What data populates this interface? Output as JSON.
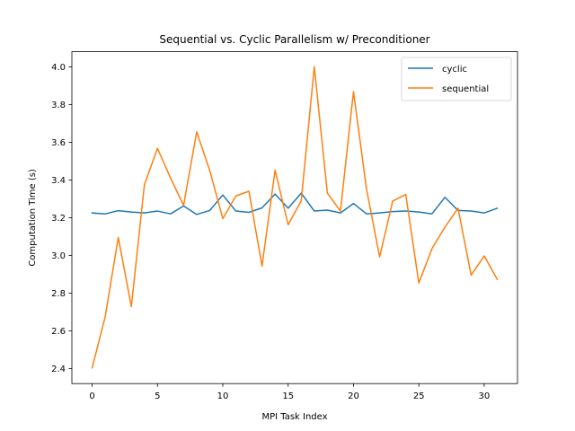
{
  "chart_data": {
    "type": "line",
    "title": "Sequential vs. Cyclic Parallelism w/ Preconditioner",
    "xlabel": "MPI Task Index",
    "ylabel": "Computation Time (s)",
    "xlim": [
      -1.55,
      32.55
    ],
    "ylim": [
      2.32,
      4.08
    ],
    "xticks": [
      0,
      5,
      10,
      15,
      20,
      25,
      30
    ],
    "yticks": [
      2.4,
      2.6,
      2.8,
      3.0,
      3.2,
      3.4,
      3.6,
      3.8,
      4.0
    ],
    "xtick_labels": [
      "0",
      "5",
      "10",
      "15",
      "20",
      "25",
      "30"
    ],
    "ytick_labels": [
      "2.4",
      "2.6",
      "2.8",
      "3.0",
      "3.2",
      "3.4",
      "3.6",
      "3.8",
      "4.0"
    ],
    "grid": false,
    "legend_position": "top-right",
    "x": [
      0,
      1,
      2,
      3,
      4,
      5,
      6,
      7,
      8,
      9,
      10,
      11,
      12,
      13,
      14,
      15,
      16,
      17,
      18,
      19,
      20,
      21,
      22,
      23,
      24,
      25,
      26,
      27,
      28,
      29,
      30,
      31
    ],
    "series": [
      {
        "name": "cyclic",
        "color": "#1f77b4",
        "values": [
          3.225,
          3.22,
          3.237,
          3.23,
          3.225,
          3.235,
          3.22,
          3.262,
          3.217,
          3.238,
          3.32,
          3.235,
          3.228,
          3.252,
          3.325,
          3.25,
          3.33,
          3.235,
          3.24,
          3.225,
          3.275,
          3.22,
          3.225,
          3.232,
          3.235,
          3.23,
          3.22,
          3.308,
          3.238,
          3.235,
          3.225,
          3.25
        ]
      },
      {
        "name": "sequential",
        "color": "#ff7f0e",
        "values": [
          2.403,
          2.675,
          3.095,
          2.728,
          3.375,
          3.568,
          3.41,
          3.265,
          3.655,
          3.45,
          3.195,
          3.315,
          3.34,
          2.943,
          3.452,
          3.162,
          3.29,
          4.0,
          3.33,
          3.235,
          3.868,
          3.35,
          2.992,
          3.288,
          3.323,
          2.853,
          3.035,
          3.15,
          3.25,
          2.895,
          2.997,
          2.873
        ]
      }
    ]
  }
}
